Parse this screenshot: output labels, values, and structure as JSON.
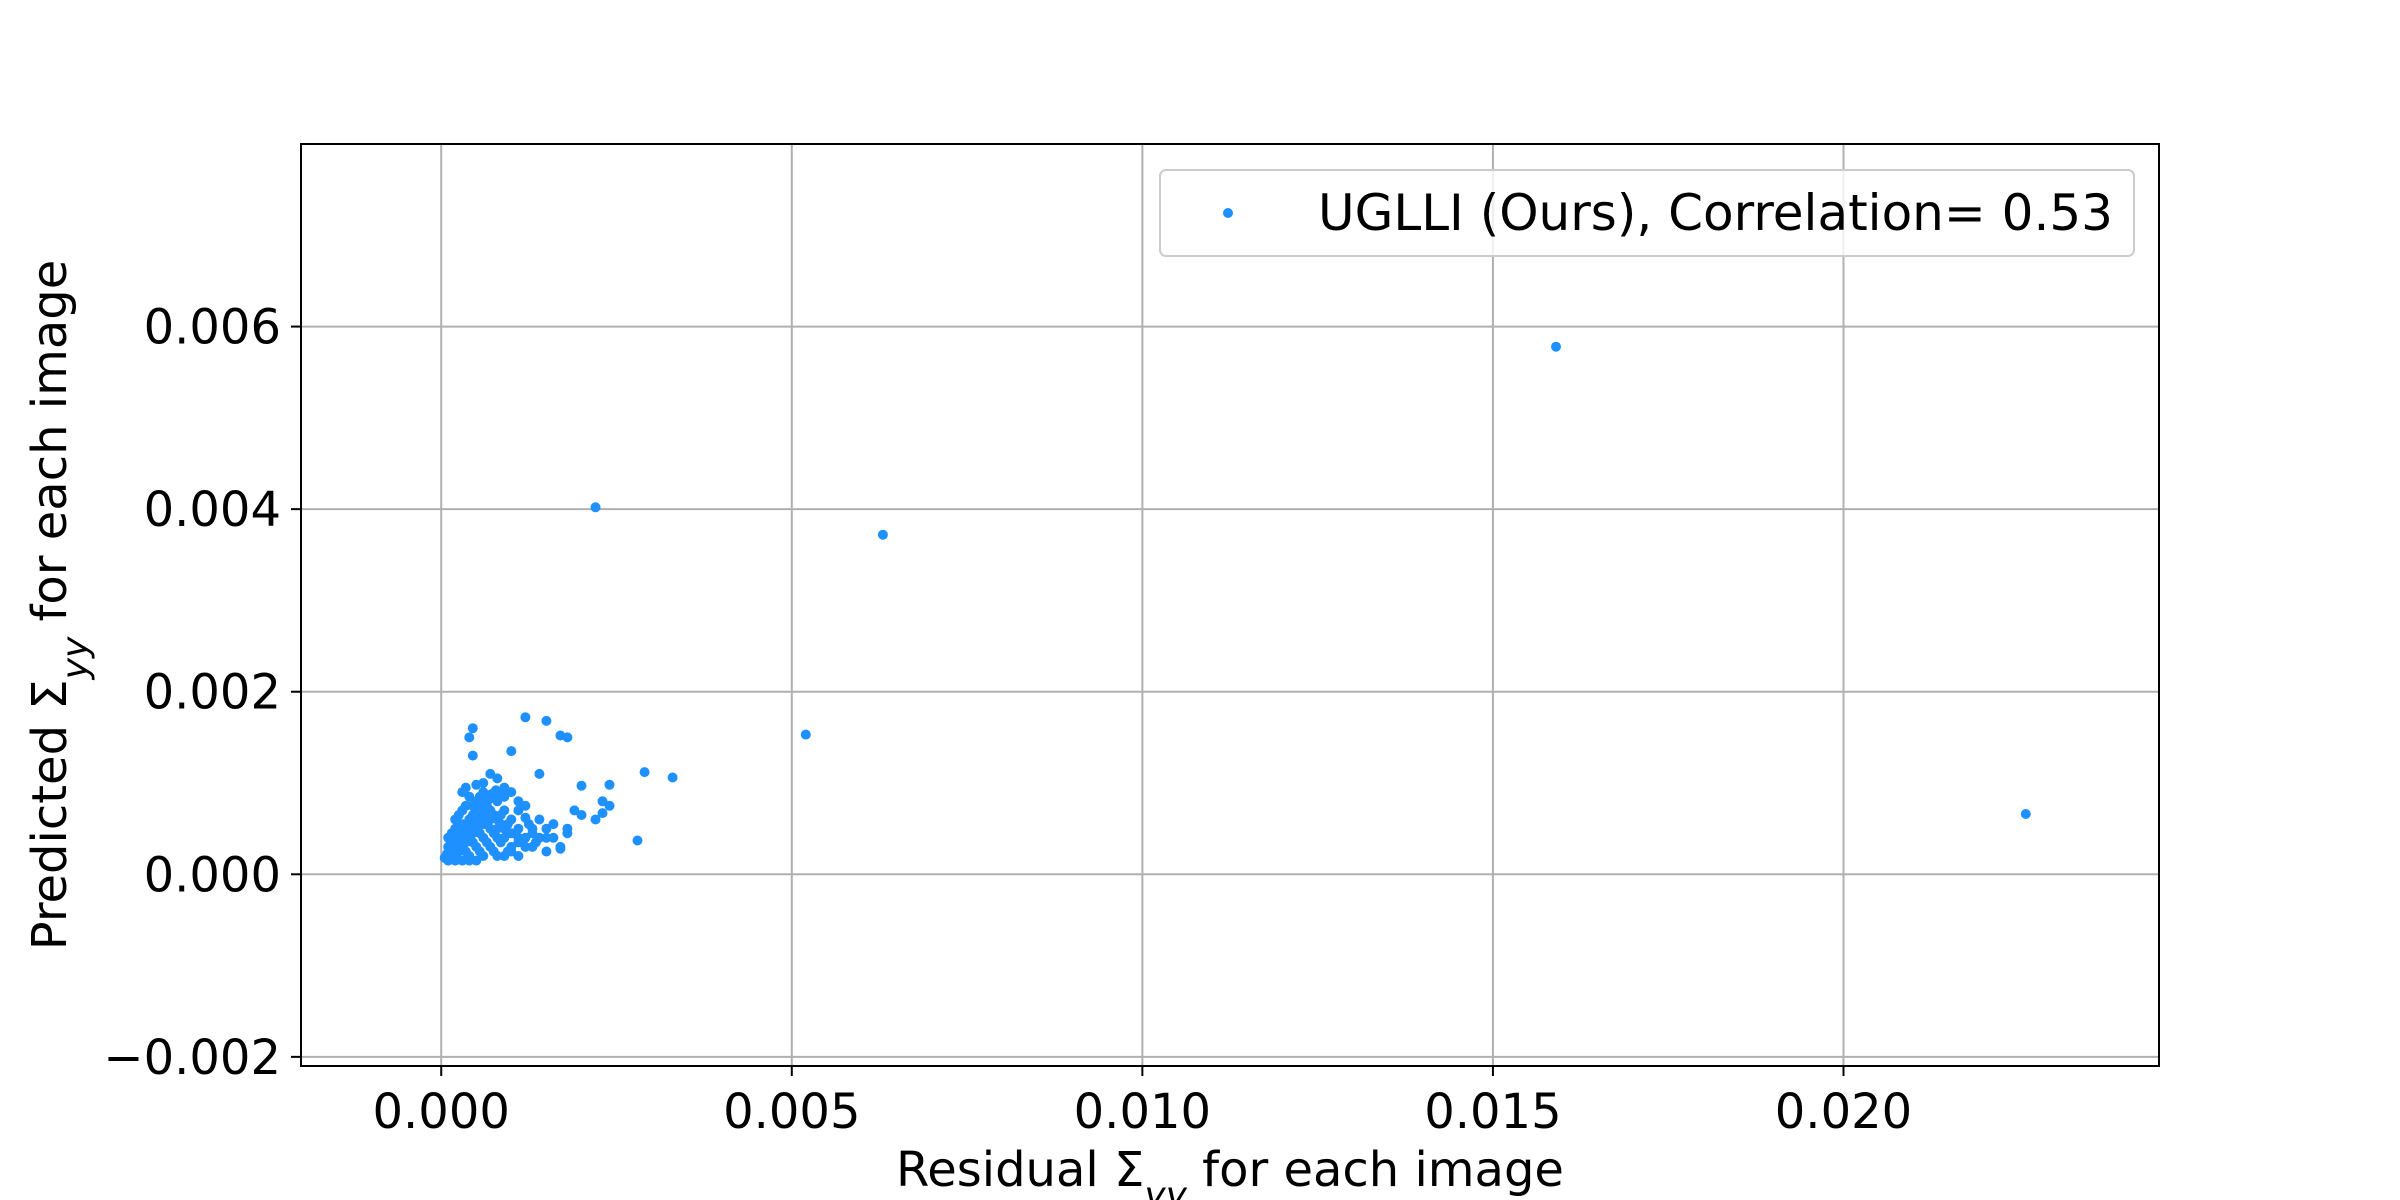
{
  "chart_data": {
    "type": "scatter",
    "title": "",
    "xlabel": "Residual Σyy for each image",
    "ylabel": "Predicted Σyy for each image",
    "xlim": [
      -0.002,
      0.0245
    ],
    "ylim": [
      -0.0021,
      0.008
    ],
    "grid": true,
    "legend_position": "top-right",
    "x_ticks": [
      {
        "value": 0.0,
        "label": "0.000"
      },
      {
        "value": 0.005,
        "label": "0.005"
      },
      {
        "value": 0.01,
        "label": "0.010"
      },
      {
        "value": 0.015,
        "label": "0.015"
      },
      {
        "value": 0.02,
        "label": "0.020"
      }
    ],
    "y_ticks": [
      {
        "value": -0.002,
        "label": "−0.002"
      },
      {
        "value": 0.0,
        "label": "0.000"
      },
      {
        "value": 0.002,
        "label": "0.002"
      },
      {
        "value": 0.004,
        "label": "0.004"
      },
      {
        "value": 0.006,
        "label": "0.006"
      }
    ],
    "series": [
      {
        "name": "UGLLI (Ours), Correlation= 0.53",
        "color": "#1e90ff",
        "points": [
          [
            0.0159,
            0.00578
          ],
          [
            0.0022,
            0.00402
          ],
          [
            0.0063,
            0.00372
          ],
          [
            0.0226,
            0.00066
          ],
          [
            0.0052,
            0.00153
          ],
          [
            0.0012,
            0.00172
          ],
          [
            0.0015,
            0.00168
          ],
          [
            0.0017,
            0.00152
          ],
          [
            0.0018,
            0.0015
          ],
          [
            0.00045,
            0.0016
          ],
          [
            0.0004,
            0.0015
          ],
          [
            0.00045,
            0.0013
          ],
          [
            0.001,
            0.00135
          ],
          [
            0.0029,
            0.00112
          ],
          [
            0.0033,
            0.00106
          ],
          [
            0.0007,
            0.0011
          ],
          [
            0.0008,
            0.00105
          ],
          [
            0.0014,
            0.0011
          ],
          [
            0.0005,
            0.00098
          ],
          [
            0.0009,
            0.00095
          ],
          [
            0.002,
            0.00097
          ],
          [
            0.0024,
            0.00098
          ],
          [
            0.0023,
            0.0008
          ],
          [
            0.0024,
            0.00075
          ],
          [
            0.002,
            0.00065
          ],
          [
            0.0022,
            0.0006
          ],
          [
            0.0019,
            0.0007
          ],
          [
            0.0023,
            0.00067
          ],
          [
            0.0028,
            0.00037
          ],
          [
            0.0017,
            0.00028
          ],
          [
            0.0018,
            0.00045
          ],
          [
            0.0015,
            0.0004
          ],
          [
            0.0016,
            0.00055
          ],
          [
            0.0014,
            0.0006
          ],
          [
            0.0013,
            0.0005
          ],
          [
            0.0012,
            0.00062
          ],
          [
            0.0011,
            0.0008
          ],
          [
            0.0012,
            0.00075
          ],
          [
            0.001,
            0.0009
          ],
          [
            0.0009,
            0.00085
          ],
          [
            0.0008,
            0.0009
          ],
          [
            0.0007,
            0.00085
          ],
          [
            0.0006,
            0.0009
          ],
          [
            0.0005,
            0.0008
          ],
          [
            0.0004,
            0.00085
          ],
          [
            0.0003,
            0.0009
          ],
          [
            0.0003,
            0.0007
          ],
          [
            0.0004,
            0.0006
          ],
          [
            0.0005,
            0.0007
          ],
          [
            0.0006,
            0.0006
          ],
          [
            0.0007,
            0.0007
          ],
          [
            0.0008,
            0.0006
          ],
          [
            0.0009,
            0.0007
          ],
          [
            0.001,
            0.0006
          ],
          [
            0.0011,
            0.0005
          ],
          [
            0.0012,
            0.0004
          ],
          [
            0.0013,
            0.0003
          ],
          [
            0.0011,
            0.0002
          ],
          [
            0.001,
            0.0003
          ],
          [
            0.0009,
            0.0004
          ],
          [
            0.0008,
            0.0004
          ],
          [
            0.0007,
            0.0005
          ],
          [
            0.0006,
            0.0004
          ],
          [
            0.0005,
            0.0005
          ],
          [
            0.0004,
            0.0004
          ],
          [
            0.0003,
            0.0005
          ],
          [
            0.0002,
            0.0004
          ],
          [
            0.0001,
            0.0003
          ],
          [
            0.0001,
            0.0002
          ],
          [
            0.0002,
            0.0002
          ],
          [
            0.0003,
            0.0003
          ],
          [
            0.0004,
            0.0002
          ],
          [
            0.0005,
            0.0003
          ],
          [
            0.0006,
            0.0002
          ],
          [
            0.0007,
            0.0003
          ],
          [
            0.0008,
            0.0002
          ],
          [
            0.0009,
            0.0002
          ],
          [
            0.001,
            0.00025
          ],
          [
            5e-05,
            0.00018
          ],
          [
            0.0001,
            0.0004
          ],
          [
            0.0002,
            0.0005
          ],
          [
            0.0002,
            0.0006
          ],
          [
            0.0003,
            0.00055
          ],
          [
            0.0004,
            0.0005
          ],
          [
            0.0005,
            0.0006
          ],
          [
            0.0006,
            0.00055
          ],
          [
            0.0007,
            0.0006
          ],
          [
            0.0008,
            0.0005
          ],
          [
            0.0009,
            0.0005
          ],
          [
            0.001,
            0.00045
          ],
          [
            0.0011,
            0.0004
          ],
          [
            0.0012,
            0.0003
          ],
          [
            0.0013,
            0.00045
          ],
          [
            0.0014,
            0.0004
          ],
          [
            0.0015,
            0.0005
          ],
          [
            0.0016,
            0.0004
          ],
          [
            0.0017,
            0.0003
          ],
          [
            0.0018,
            0.0005
          ],
          [
            0.00015,
            0.00025
          ],
          [
            0.00025,
            0.00035
          ],
          [
            0.00035,
            0.00025
          ],
          [
            0.00045,
            0.00035
          ],
          [
            0.00055,
            0.00025
          ],
          [
            0.00065,
            0.00035
          ],
          [
            0.00075,
            0.00025
          ],
          [
            0.00085,
            0.00035
          ],
          [
            0.00095,
            0.00025
          ],
          [
            0.00015,
            0.00045
          ],
          [
            0.00025,
            0.00065
          ],
          [
            0.00035,
            0.00075
          ],
          [
            0.00045,
            0.00065
          ],
          [
            0.00055,
            0.00045
          ],
          [
            0.00065,
            0.00075
          ],
          [
            0.00075,
            0.00045
          ],
          [
            0.00085,
            0.00065
          ],
          [
            0.00095,
            0.00055
          ],
          [
            0.0001,
            0.00015
          ],
          [
            0.0002,
            0.00015
          ],
          [
            0.0003,
            0.00015
          ],
          [
            0.0004,
            0.00015
          ],
          [
            0.0005,
            0.00015
          ],
          [
            8e-05,
            0.00022
          ],
          [
            0.00012,
            0.00028
          ],
          [
            0.00018,
            0.00032
          ],
          [
            0.00022,
            0.00038
          ],
          [
            0.00028,
            0.00042
          ],
          [
            0.00032,
            0.00048
          ],
          [
            0.00038,
            0.00052
          ],
          [
            0.00042,
            0.00058
          ],
          [
            0.00048,
            0.00062
          ],
          [
            0.00052,
            0.00068
          ],
          [
            0.00058,
            0.00072
          ],
          [
            0.00062,
            0.00078
          ],
          [
            0.00068,
            0.00082
          ],
          [
            0.00072,
            0.00088
          ],
          [
            0.00078,
            0.00092
          ],
          [
            0.00035,
            0.00095
          ],
          [
            0.0006,
            0.001
          ],
          [
            0.0008,
            0.0008
          ],
          [
            0.0011,
            0.0007
          ],
          [
            0.00125,
            0.00055
          ],
          [
            0.00135,
            0.00035
          ],
          [
            0.0015,
            0.00025
          ],
          [
            0.0011,
            0.00035
          ],
          [
            0.00095,
            0.00045
          ],
          [
            0.00085,
            0.00055
          ],
          [
            0.00075,
            0.00065
          ],
          [
            0.00065,
            0.00055
          ],
          [
            0.00055,
            0.00085
          ],
          [
            0.00045,
            0.00075
          ],
          [
            0.00025,
            0.00025
          ],
          [
            0.00035,
            0.00035
          ],
          [
            0.00045,
            0.00045
          ],
          [
            0.00055,
            0.00055
          ],
          [
            0.00065,
            0.00065
          ]
        ]
      }
    ]
  }
}
